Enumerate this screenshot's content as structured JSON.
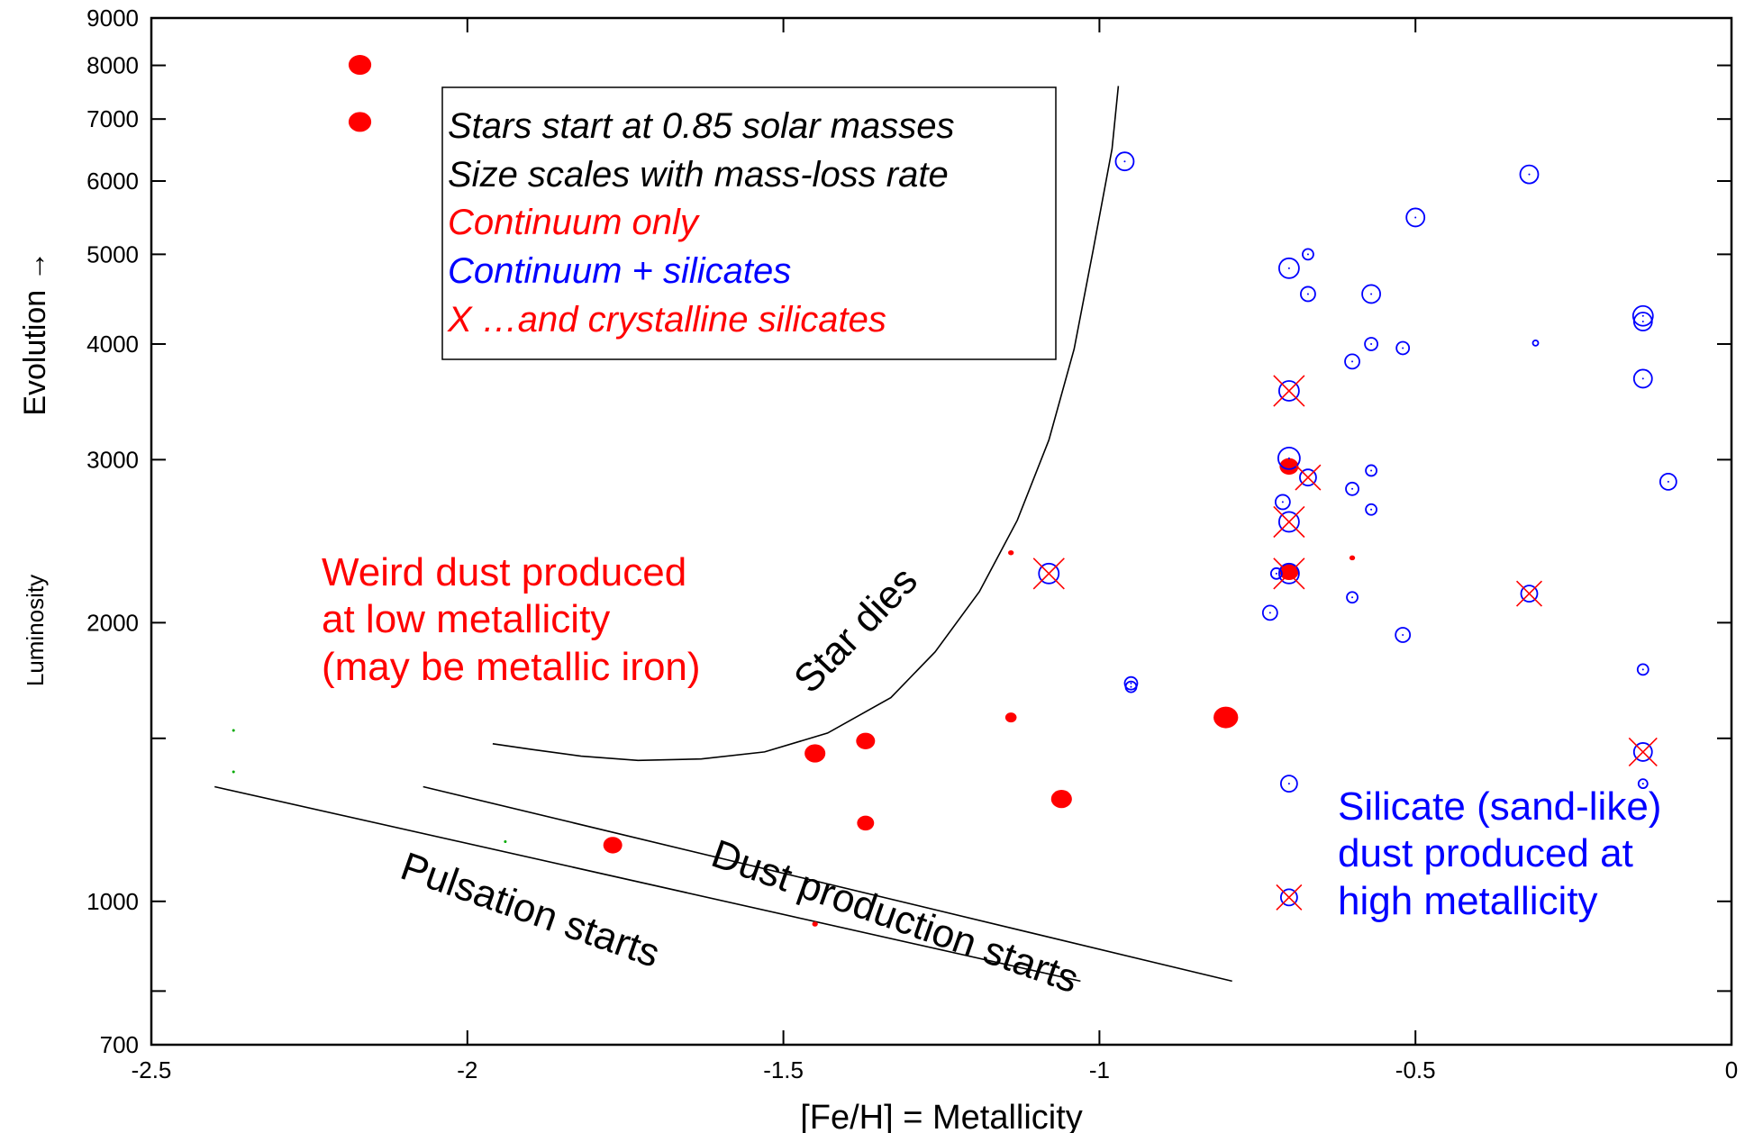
{
  "colors": {
    "continuum": "#ff0000",
    "silicates": "#0000ff",
    "crystalline": "#ff0000",
    "pulsation_onset": "#00aa00",
    "lines": "#000000"
  },
  "chart_data": {
    "type": "scatter",
    "xlabel": "[Fe/H] = Metallicity",
    "ylabel": "Evolution →",
    "ylabel2": "Luminosity",
    "xlim": [
      -2.5,
      0
    ],
    "ylim": [
      700,
      9000
    ],
    "yscale": "log",
    "x_ticks": [
      "-2.5",
      "-2",
      "-1.5",
      "-1",
      "-0.5",
      "0"
    ],
    "x_tick_values": [
      -2.5,
      -2,
      -1.5,
      -1,
      -0.5,
      0
    ],
    "y_ticks": [
      "9000",
      "8000",
      "7000",
      "6000",
      "5000",
      "4000",
      "3000",
      "2000",
      "1000",
      "700"
    ],
    "y_tick_values": [
      9000,
      8000,
      7000,
      6000,
      5000,
      4000,
      3000,
      2000,
      1000,
      700
    ],
    "y_minor_ticks": [
      1500,
      800
    ],
    "legend": {
      "lines": [
        {
          "text": "Stars start at 0.85 solar masses",
          "color": "#000000"
        },
        {
          "text": "Size scales with mass-loss rate",
          "color": "#000000"
        },
        {
          "text": "Continuum only",
          "color": "#ff0000"
        },
        {
          "text": "Continuum + silicates",
          "color": "#0000ff"
        },
        {
          "text": "X …and crystalline silicates",
          "color": "#ff0000"
        }
      ]
    },
    "annotations": {
      "weird_dust": [
        "Weird dust produced",
        "at low metallicity",
        "(may be metallic iron)"
      ],
      "silicate_dust": [
        "Silicate (sand-like)",
        "dust produced at",
        "high metallicity"
      ],
      "star_dies": "Star dies",
      "dust_production": "Dust production starts",
      "pulsation": "Pulsation starts"
    },
    "series": [
      {
        "name": "Continuum only",
        "marker": "filled-circle",
        "points": [
          {
            "x": -2.17,
            "y": 8010,
            "size": 12
          },
          {
            "x": -2.17,
            "y": 6950,
            "size": 12
          },
          {
            "x": -1.77,
            "y": 1150,
            "size": 10
          },
          {
            "x": -1.45,
            "y": 1445,
            "size": 11
          },
          {
            "x": -1.37,
            "y": 1490,
            "size": 10
          },
          {
            "x": -1.37,
            "y": 1215,
            "size": 9
          },
          {
            "x": -1.06,
            "y": 1290,
            "size": 11
          },
          {
            "x": -0.8,
            "y": 1580,
            "size": 13
          },
          {
            "x": -1.14,
            "y": 1580,
            "size": 6
          },
          {
            "x": -1.14,
            "y": 2380,
            "size": 3
          },
          {
            "x": -1.45,
            "y": 945,
            "size": 3
          },
          {
            "x": -0.7,
            "y": 2950,
            "size": 10
          },
          {
            "x": -0.7,
            "y": 2270,
            "size": 10
          },
          {
            "x": -0.6,
            "y": 2350,
            "size": 3
          }
        ]
      },
      {
        "name": "Continuum + silicates",
        "marker": "open-circle",
        "points": [
          {
            "x": -0.96,
            "y": 6300,
            "size": 10
          },
          {
            "x": -0.32,
            "y": 6100,
            "size": 10
          },
          {
            "x": -0.5,
            "y": 5480,
            "size": 10
          },
          {
            "x": -0.7,
            "y": 4830,
            "size": 11
          },
          {
            "x": -0.67,
            "y": 5000,
            "size": 6
          },
          {
            "x": -0.67,
            "y": 4530,
            "size": 8
          },
          {
            "x": -0.57,
            "y": 4530,
            "size": 10
          },
          {
            "x": -0.57,
            "y": 4000,
            "size": 7
          },
          {
            "x": -0.6,
            "y": 3830,
            "size": 8
          },
          {
            "x": -0.52,
            "y": 3960,
            "size": 7
          },
          {
            "x": -0.31,
            "y": 4010,
            "size": 3
          },
          {
            "x": -0.14,
            "y": 4290,
            "size": 11
          },
          {
            "x": -0.14,
            "y": 4230,
            "size": 10
          },
          {
            "x": -0.14,
            "y": 3670,
            "size": 10
          },
          {
            "x": -0.7,
            "y": 3010,
            "size": 12
          },
          {
            "x": -0.57,
            "y": 2920,
            "size": 6
          },
          {
            "x": -0.6,
            "y": 2790,
            "size": 7
          },
          {
            "x": -0.71,
            "y": 2700,
            "size": 8
          },
          {
            "x": -0.57,
            "y": 2650,
            "size": 6
          },
          {
            "x": -0.1,
            "y": 2840,
            "size": 9
          },
          {
            "x": -0.72,
            "y": 2260,
            "size": 6
          },
          {
            "x": -0.6,
            "y": 2130,
            "size": 6
          },
          {
            "x": -0.73,
            "y": 2050,
            "size": 8
          },
          {
            "x": -0.52,
            "y": 1940,
            "size": 8
          },
          {
            "x": -0.95,
            "y": 1720,
            "size": 7
          },
          {
            "x": -0.95,
            "y": 1705,
            "size": 6
          },
          {
            "x": -0.14,
            "y": 1780,
            "size": 6
          },
          {
            "x": -0.7,
            "y": 1340,
            "size": 9
          },
          {
            "x": -0.14,
            "y": 1340,
            "size": 5
          }
        ]
      },
      {
        "name": "…and crystalline silicates",
        "marker": "open-circle-x",
        "points": [
          {
            "x": -0.7,
            "y": 3560,
            "size": 11
          },
          {
            "x": -0.67,
            "y": 2870,
            "size": 9
          },
          {
            "x": -0.7,
            "y": 2570,
            "size": 11
          },
          {
            "x": -0.7,
            "y": 2260,
            "size": 11
          },
          {
            "x": -1.08,
            "y": 2260,
            "size": 11
          },
          {
            "x": -0.32,
            "y": 2150,
            "size": 9
          },
          {
            "x": -0.14,
            "y": 1450,
            "size": 10
          },
          {
            "x": -0.7,
            "y": 1010,
            "size": 9
          }
        ]
      },
      {
        "name": "Pulsation onset",
        "marker": "dot",
        "points": [
          {
            "x": -2.37,
            "y": 1530,
            "size": 1.5
          },
          {
            "x": -2.37,
            "y": 1380,
            "size": 1.5
          },
          {
            "x": -1.94,
            "y": 1160,
            "size": 1.5
          },
          {
            "x": -1.11,
            "y": 850,
            "size": 1.5
          }
        ]
      }
    ],
    "curves": {
      "star_dies": [
        [
          -1.96,
          1480
        ],
        [
          -1.9,
          1460
        ],
        [
          -1.82,
          1435
        ],
        [
          -1.73,
          1420
        ],
        [
          -1.63,
          1425
        ],
        [
          -1.53,
          1450
        ],
        [
          -1.43,
          1520
        ],
        [
          -1.33,
          1660
        ],
        [
          -1.26,
          1860
        ],
        [
          -1.19,
          2160
        ],
        [
          -1.13,
          2580
        ],
        [
          -1.08,
          3150
        ],
        [
          -1.04,
          3950
        ],
        [
          -1.01,
          5050
        ],
        [
          -0.98,
          6500
        ],
        [
          -0.97,
          7600
        ]
      ],
      "dust_production": [
        [
          -2.07,
          1330
        ],
        [
          -0.79,
          820
        ]
      ],
      "pulsation": [
        [
          -2.4,
          1330
        ],
        [
          -1.03,
          820
        ]
      ]
    }
  }
}
